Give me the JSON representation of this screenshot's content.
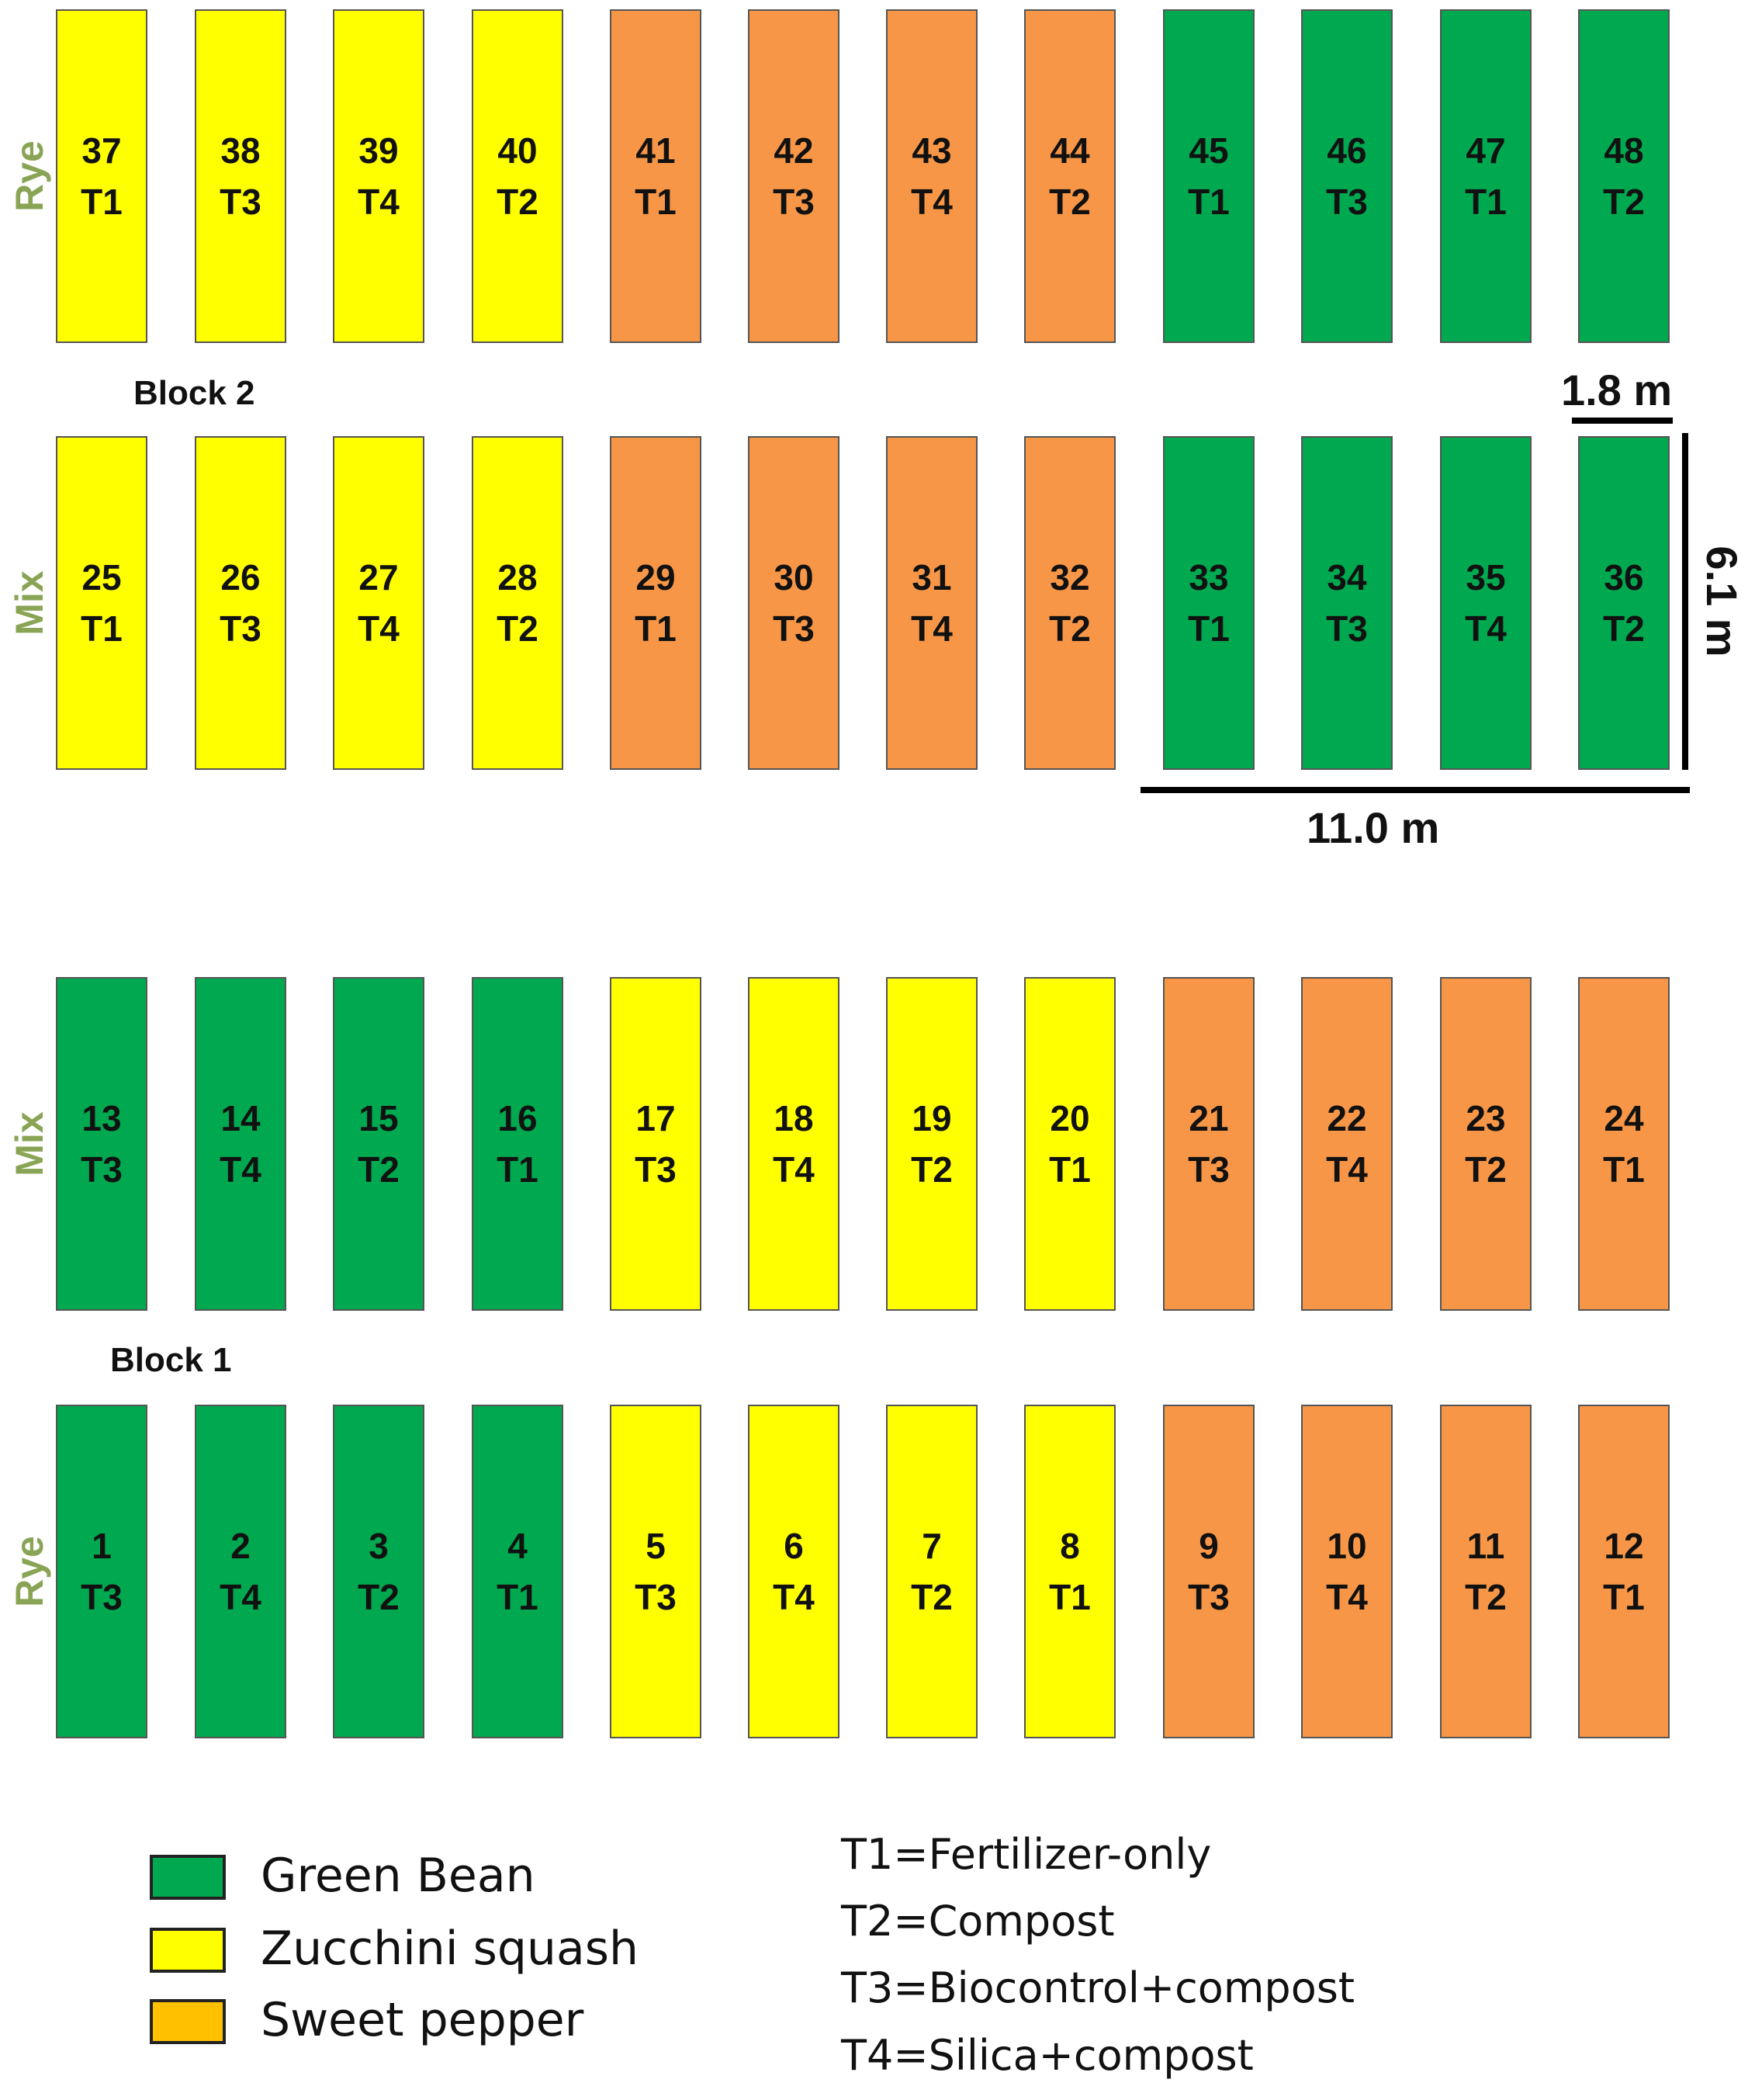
{
  "colors": {
    "green_bean": "#00a84f",
    "zucchini_squash": "#ffff00",
    "sweet_pepper": "#f79646",
    "legend_sweet_pepper": "#ffc000",
    "row_label": "#8aa455"
  },
  "rows": [
    {
      "label": "Rye",
      "plots": [
        {
          "num": "37",
          "trt": "T1",
          "crop": "zucchini_squash"
        },
        {
          "num": "38",
          "trt": "T3",
          "crop": "zucchini_squash"
        },
        {
          "num": "39",
          "trt": "T4",
          "crop": "zucchini_squash"
        },
        {
          "num": "40",
          "trt": "T2",
          "crop": "zucchini_squash"
        },
        {
          "num": "41",
          "trt": "T1",
          "crop": "sweet_pepper"
        },
        {
          "num": "42",
          "trt": "T3",
          "crop": "sweet_pepper"
        },
        {
          "num": "43",
          "trt": "T4",
          "crop": "sweet_pepper"
        },
        {
          "num": "44",
          "trt": "T2",
          "crop": "sweet_pepper"
        },
        {
          "num": "45",
          "trt": "T1",
          "crop": "green_bean"
        },
        {
          "num": "46",
          "trt": "T3",
          "crop": "green_bean"
        },
        {
          "num": "47",
          "trt": "T1",
          "crop": "green_bean"
        },
        {
          "num": "48",
          "trt": "T2",
          "crop": "green_bean"
        }
      ]
    },
    {
      "label": "Mix",
      "plots": [
        {
          "num": "25",
          "trt": "T1",
          "crop": "zucchini_squash"
        },
        {
          "num": "26",
          "trt": "T3",
          "crop": "zucchini_squash"
        },
        {
          "num": "27",
          "trt": "T4",
          "crop": "zucchini_squash"
        },
        {
          "num": "28",
          "trt": "T2",
          "crop": "zucchini_squash"
        },
        {
          "num": "29",
          "trt": "T1",
          "crop": "sweet_pepper"
        },
        {
          "num": "30",
          "trt": "T3",
          "crop": "sweet_pepper"
        },
        {
          "num": "31",
          "trt": "T4",
          "crop": "sweet_pepper"
        },
        {
          "num": "32",
          "trt": "T2",
          "crop": "sweet_pepper"
        },
        {
          "num": "33",
          "trt": "T1",
          "crop": "green_bean"
        },
        {
          "num": "34",
          "trt": "T3",
          "crop": "green_bean"
        },
        {
          "num": "35",
          "trt": "T4",
          "crop": "green_bean"
        },
        {
          "num": "36",
          "trt": "T2",
          "crop": "green_bean"
        }
      ]
    },
    {
      "label": "Mix",
      "plots": [
        {
          "num": "13",
          "trt": "T3",
          "crop": "green_bean"
        },
        {
          "num": "14",
          "trt": "T4",
          "crop": "green_bean"
        },
        {
          "num": "15",
          "trt": "T2",
          "crop": "green_bean"
        },
        {
          "num": "16",
          "trt": "T1",
          "crop": "green_bean"
        },
        {
          "num": "17",
          "trt": "T3",
          "crop": "zucchini_squash"
        },
        {
          "num": "18",
          "trt": "T4",
          "crop": "zucchini_squash"
        },
        {
          "num": "19",
          "trt": "T2",
          "crop": "zucchini_squash"
        },
        {
          "num": "20",
          "trt": "T1",
          "crop": "zucchini_squash"
        },
        {
          "num": "21",
          "trt": "T3",
          "crop": "sweet_pepper"
        },
        {
          "num": "22",
          "trt": "T4",
          "crop": "sweet_pepper"
        },
        {
          "num": "23",
          "trt": "T2",
          "crop": "sweet_pepper"
        },
        {
          "num": "24",
          "trt": "T1",
          "crop": "sweet_pepper"
        }
      ]
    },
    {
      "label": "Rye",
      "plots": [
        {
          "num": "1",
          "trt": "T3",
          "crop": "green_bean"
        },
        {
          "num": "2",
          "trt": "T4",
          "crop": "green_bean"
        },
        {
          "num": "3",
          "trt": "T2",
          "crop": "green_bean"
        },
        {
          "num": "4",
          "trt": "T1",
          "crop": "green_bean"
        },
        {
          "num": "5",
          "trt": "T3",
          "crop": "zucchini_squash"
        },
        {
          "num": "6",
          "trt": "T4",
          "crop": "zucchini_squash"
        },
        {
          "num": "7",
          "trt": "T2",
          "crop": "zucchini_squash"
        },
        {
          "num": "8",
          "trt": "T1",
          "crop": "zucchini_squash"
        },
        {
          "num": "9",
          "trt": "T3",
          "crop": "sweet_pepper"
        },
        {
          "num": "10",
          "trt": "T4",
          "crop": "sweet_pepper"
        },
        {
          "num": "11",
          "trt": "T2",
          "crop": "sweet_pepper"
        },
        {
          "num": "12",
          "trt": "T1",
          "crop": "sweet_pepper"
        }
      ]
    }
  ],
  "blocks": {
    "block2": "Block 2",
    "block1": "Block 1"
  },
  "dimensions": {
    "plot_width": "1.8 m",
    "plot_length": "6.1 m",
    "group_width": "11.0 m"
  },
  "legend": {
    "crops": [
      {
        "label": "Green Bean",
        "color": "green_bean"
      },
      {
        "label": "Zucchini squash",
        "color": "zucchini_squash"
      },
      {
        "label": "Sweet pepper",
        "color": "legend_sweet_pepper"
      }
    ],
    "treatments": [
      "T1=Fertilizer-only",
      "T2=Compost",
      "T3=Biocontrol+compost",
      "T4=Silica+compost"
    ]
  }
}
